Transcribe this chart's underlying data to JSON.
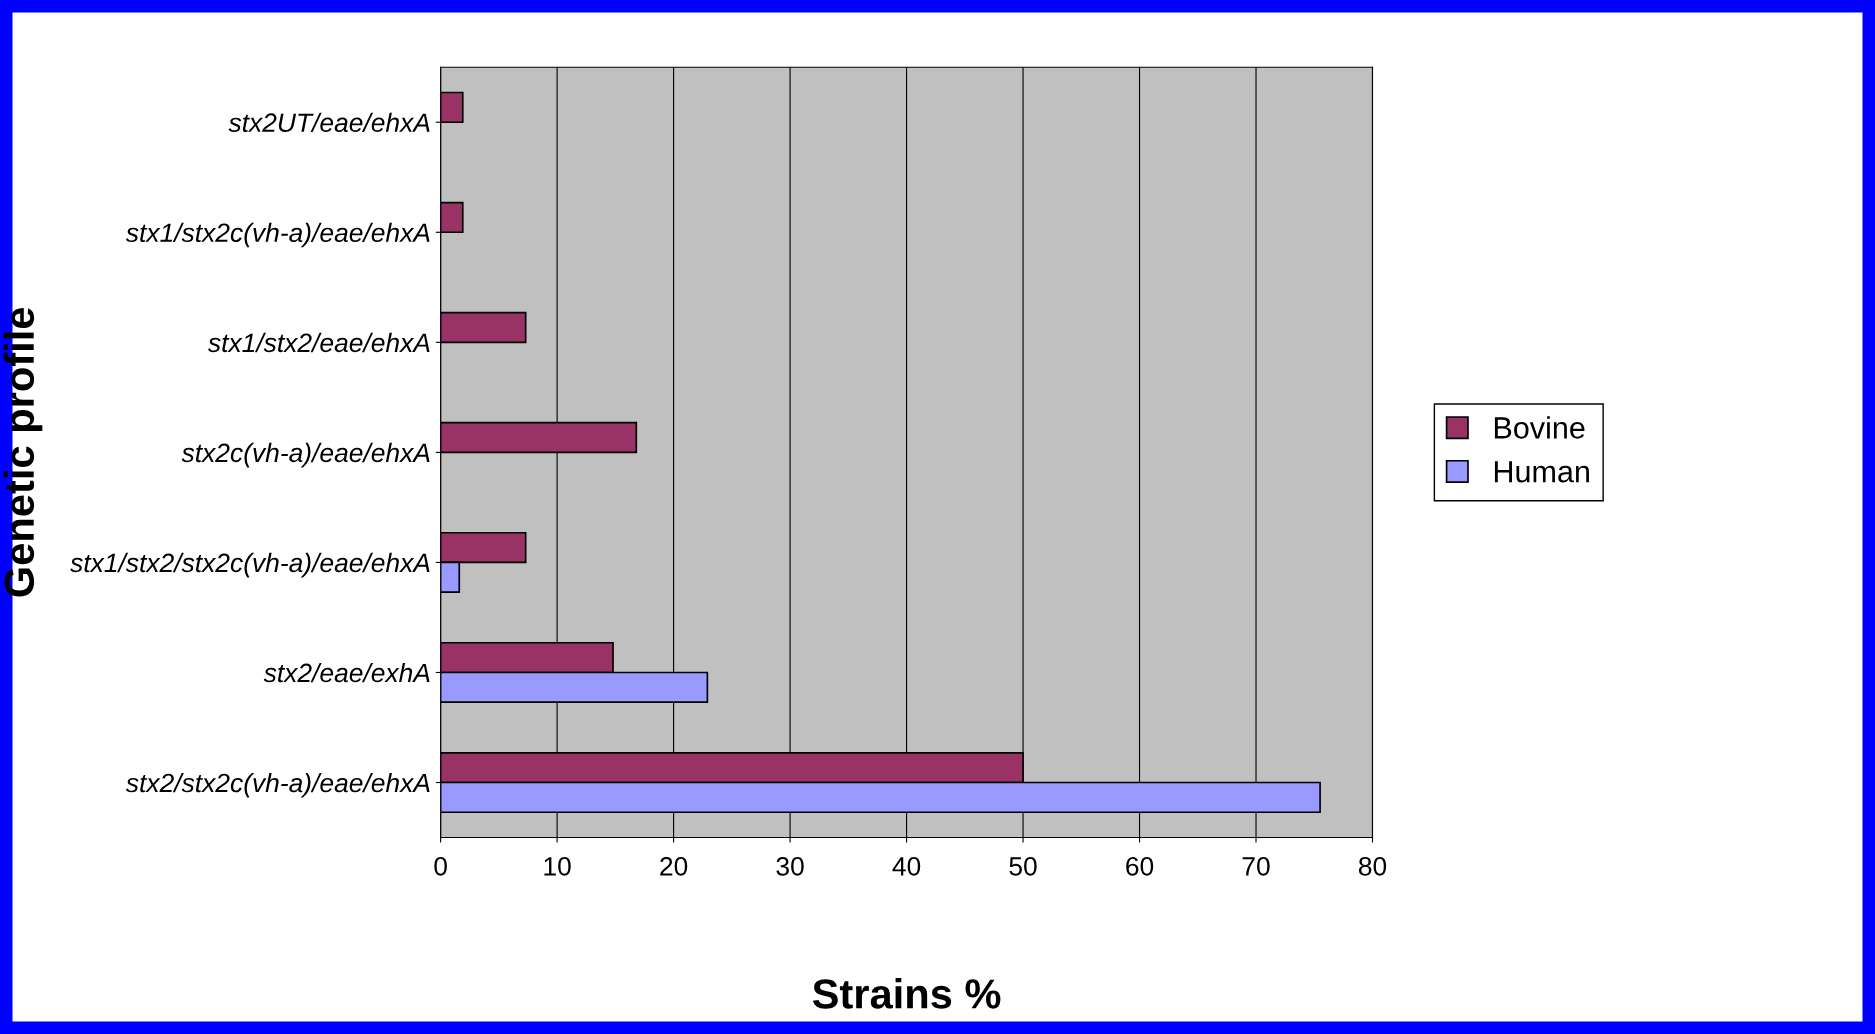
{
  "chart_data": {
    "type": "bar",
    "orientation": "horizontal",
    "xlabel": "Strains %",
    "ylabel": "Genetic profile",
    "categories": [
      "stx2UT/eae/ehxA",
      "stx1/stx2c(vh-a)/eae/ehxA",
      "stx1/stx2/eae/ehxA",
      "stx2c(vh-a)/eae/ehxA",
      "stx1/stx2/stx2c(vh-a)/eae/ehxA",
      "stx2/eae/exhA",
      "stx2/stx2c(vh-a)/eae/ehxA"
    ],
    "series": [
      {
        "name": "Bovine",
        "color": "#993366",
        "values": [
          1.9,
          1.9,
          7.3,
          16.8,
          7.3,
          14.8,
          50
        ]
      },
      {
        "name": "Human",
        "color": "#9999ff",
        "values": [
          null,
          null,
          null,
          null,
          1.6,
          22.9,
          75.5
        ]
      }
    ],
    "xlim": [
      0,
      80
    ],
    "xticks": [
      0,
      10,
      20,
      30,
      40,
      50,
      60,
      70,
      80
    ],
    "grid": "x",
    "legend": "right"
  }
}
